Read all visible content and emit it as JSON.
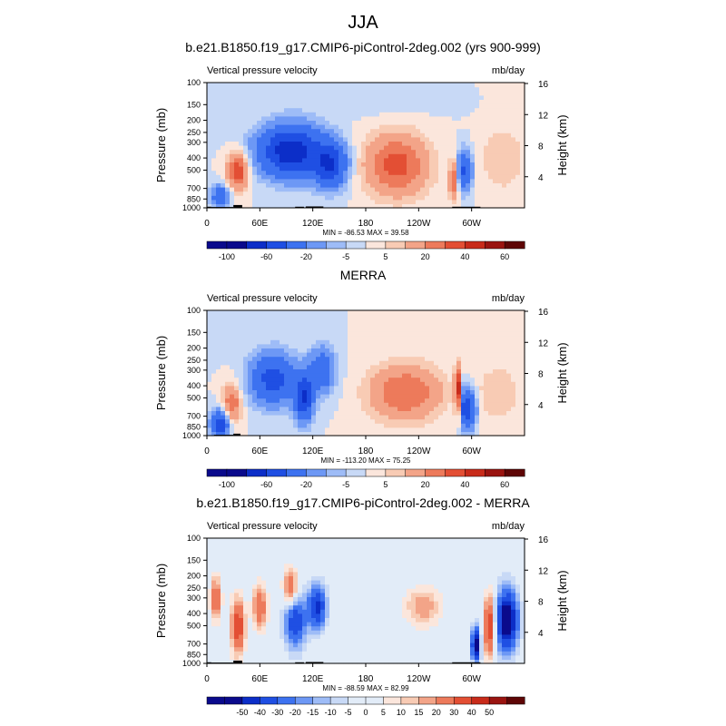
{
  "figure": {
    "title": "JJA"
  },
  "colors": {
    "palette": [
      "#0a0a8c",
      "#0c2ec8",
      "#1f4fe3",
      "#3d72f0",
      "#6d98f5",
      "#9ebcf7",
      "#c8d9f6",
      "#e2ecf8",
      "#fbe6dc",
      "#f8cbb4",
      "#f3a488",
      "#ed7a5b",
      "#e34f34",
      "#c82b1a",
      "#9a1410",
      "#5e0606"
    ]
  },
  "chart_data": [
    {
      "type": "heatmap",
      "title": "b.e21.B1850.f19_g17.CMIP6-piControl-2deg.002 (yrs 900-999)",
      "left_label": "Vertical pressure velocity",
      "right_label": "mb/day",
      "ylabel": "Pressure (mb)",
      "y2label": "Height (km)",
      "x_ticks": [
        "0",
        "60E",
        "120E",
        "180",
        "120W",
        "60W"
      ],
      "x_tick_lon": [
        0,
        60,
        120,
        180,
        240,
        300
      ],
      "xlim": [
        0,
        360
      ],
      "y_ticks": [
        "100",
        "150",
        "200",
        "250",
        "300",
        "400",
        "500",
        "700",
        "850",
        "1000"
      ],
      "y_tick_p": [
        100,
        150,
        200,
        250,
        300,
        400,
        500,
        700,
        850,
        1000
      ],
      "ylim": [
        1000,
        100
      ],
      "y2_ticks": [
        "16",
        "12",
        "8",
        "4"
      ],
      "y2_tick_km": [
        16,
        12,
        8,
        4
      ],
      "stats": "MIN = -86.53   MAX =  39.58",
      "colorbar_levels": [
        -100,
        -80,
        -60,
        -40,
        -20,
        -10,
        -5,
        0,
        5,
        10,
        20,
        30,
        40,
        50,
        60
      ],
      "colorbar_labels": [
        "-100",
        "-60",
        "-20",
        "-5",
        "5",
        "20",
        "40",
        "60"
      ],
      "colorbar_label_levels": [
        -100,
        -60,
        -20,
        -5,
        5,
        20,
        40,
        60
      ],
      "min": -86.53,
      "max": 39.58,
      "features": [
        {
          "lon": 35,
          "p": 500,
          "wlon": 12,
          "wz": 0.32,
          "amp": 40
        },
        {
          "lon": 15,
          "p": 800,
          "wlon": 10,
          "wz": 0.2,
          "amp": -35
        },
        {
          "lon": 95,
          "p": 350,
          "wlon": 35,
          "wz": 0.45,
          "amp": -75
        },
        {
          "lon": 140,
          "p": 450,
          "wlon": 18,
          "wz": 0.4,
          "amp": -55
        },
        {
          "lon": 215,
          "p": 450,
          "wlon": 35,
          "wz": 0.55,
          "amp": 35
        },
        {
          "lon": 280,
          "p": 600,
          "wlon": 5,
          "wz": 0.35,
          "amp": 30
        },
        {
          "lon": 292,
          "p": 500,
          "wlon": 8,
          "wz": 0.35,
          "amp": -45
        },
        {
          "lon": 335,
          "p": 400,
          "wlon": 25,
          "wz": 0.6,
          "amp": 10
        },
        {
          "lon": 180,
          "p": 150,
          "wlon": 80,
          "wz": 0.2,
          "amp": -3
        }
      ],
      "topography": [
        [
          0,
          5,
          980
        ],
        [
          5,
          30,
          985
        ],
        [
          30,
          40,
          950
        ],
        [
          100,
          110,
          980
        ],
        [
          112,
          132,
          975
        ],
        [
          278,
          310,
          980
        ]
      ]
    },
    {
      "type": "heatmap",
      "title": "MERRA",
      "left_label": "Vertical pressure velocity",
      "right_label": "mb/day",
      "ylabel": "Pressure (mb)",
      "y2label": "Height (km)",
      "x_ticks": [
        "0",
        "60E",
        "120E",
        "180",
        "120W",
        "60W"
      ],
      "x_tick_lon": [
        0,
        60,
        120,
        180,
        240,
        300
      ],
      "xlim": [
        0,
        360
      ],
      "y_ticks": [
        "100",
        "150",
        "200",
        "250",
        "300",
        "400",
        "500",
        "700",
        "850",
        "1000"
      ],
      "y_tick_p": [
        100,
        150,
        200,
        250,
        300,
        400,
        500,
        700,
        850,
        1000
      ],
      "ylim": [
        1000,
        100
      ],
      "y2_ticks": [
        "16",
        "12",
        "8",
        "4"
      ],
      "y2_tick_km": [
        16,
        12,
        8,
        4
      ],
      "stats": "MIN = -113.20   MAX =  75.25",
      "colorbar_levels": [
        -100,
        -80,
        -60,
        -40,
        -20,
        -10,
        -5,
        0,
        5,
        10,
        20,
        30,
        40,
        50,
        60
      ],
      "colorbar_labels": [
        "-100",
        "-60",
        "-20",
        "-5",
        "5",
        "20",
        "40",
        "60"
      ],
      "colorbar_label_levels": [
        -100,
        -60,
        -20,
        -5,
        5,
        20,
        40,
        60
      ],
      "min": -113.2,
      "max": 75.25,
      "features": [
        {
          "lon": 28,
          "p": 550,
          "wlon": 10,
          "wz": 0.35,
          "amp": 30
        },
        {
          "lon": 15,
          "p": 800,
          "wlon": 10,
          "wz": 0.25,
          "amp": -55
        },
        {
          "lon": 75,
          "p": 350,
          "wlon": 25,
          "wz": 0.45,
          "amp": -50
        },
        {
          "lon": 110,
          "p": 500,
          "wlon": 10,
          "wz": 0.4,
          "amp": -60
        },
        {
          "lon": 130,
          "p": 300,
          "wlon": 15,
          "wz": 0.4,
          "amp": -35
        },
        {
          "lon": 225,
          "p": 450,
          "wlon": 40,
          "wz": 0.5,
          "amp": 30
        },
        {
          "lon": 284,
          "p": 450,
          "wlon": 3,
          "wz": 0.45,
          "amp": 60
        },
        {
          "lon": 295,
          "p": 600,
          "wlon": 9,
          "wz": 0.35,
          "amp": -60
        },
        {
          "lon": 330,
          "p": 450,
          "wlon": 25,
          "wz": 0.5,
          "amp": 10
        }
      ],
      "topography": [
        [
          8,
          30,
          985
        ],
        [
          30,
          38,
          965
        ]
      ]
    },
    {
      "type": "heatmap",
      "title": "b.e21.B1850.f19_g17.CMIP6-piControl-2deg.002 - MERRA",
      "left_label": "Vertical pressure velocity",
      "right_label": "mb/day",
      "ylabel": "Pressure (mb)",
      "y2label": "Height (km)",
      "x_ticks": [
        "0",
        "60E",
        "120E",
        "180",
        "120W",
        "60W"
      ],
      "x_tick_lon": [
        0,
        60,
        120,
        180,
        240,
        300
      ],
      "xlim": [
        0,
        360
      ],
      "y_ticks": [
        "100",
        "150",
        "200",
        "250",
        "300",
        "400",
        "500",
        "700",
        "850",
        "1000"
      ],
      "y_tick_p": [
        100,
        150,
        200,
        250,
        300,
        400,
        500,
        700,
        850,
        1000
      ],
      "ylim": [
        1000,
        100
      ],
      "y2_ticks": [
        "16",
        "12",
        "8",
        "4"
      ],
      "y2_tick_km": [
        16,
        12,
        8,
        4
      ],
      "stats": "MIN = -88.59   MAX =  82.99",
      "colorbar_levels": [
        -60,
        -50,
        -40,
        -30,
        -20,
        -15,
        -10,
        -5,
        0,
        5,
        10,
        15,
        20,
        30,
        40,
        50,
        60
      ],
      "colorbar_labels": [
        "-50",
        "-40",
        "-30",
        "-20",
        "-15",
        "-10",
        "-5",
        "0",
        "5",
        "10",
        "15",
        "20",
        "30",
        "40",
        "50"
      ],
      "colorbar_label_levels": [
        -50,
        -40,
        -30,
        -20,
        -15,
        -10,
        -5,
        0,
        5,
        10,
        15,
        20,
        30,
        40,
        50
      ],
      "min": -88.59,
      "max": 82.99,
      "features": [
        {
          "lon": 10,
          "p": 300,
          "wlon": 6,
          "wz": 0.4,
          "amp": 30
        },
        {
          "lon": 35,
          "p": 500,
          "wlon": 8,
          "wz": 0.5,
          "amp": 40
        },
        {
          "lon": 60,
          "p": 350,
          "wlon": 8,
          "wz": 0.4,
          "amp": 30
        },
        {
          "lon": 95,
          "p": 250,
          "wlon": 8,
          "wz": 0.35,
          "amp": 35
        },
        {
          "lon": 100,
          "p": 450,
          "wlon": 12,
          "wz": 0.5,
          "amp": -40
        },
        {
          "lon": 125,
          "p": 350,
          "wlon": 10,
          "wz": 0.4,
          "amp": -45
        },
        {
          "lon": 245,
          "p": 350,
          "wlon": 20,
          "wz": 0.35,
          "amp": 20
        },
        {
          "lon": 305,
          "p": 700,
          "wlon": 5,
          "wz": 0.3,
          "amp": -60
        },
        {
          "lon": 320,
          "p": 500,
          "wlon": 6,
          "wz": 0.55,
          "amp": 45
        },
        {
          "lon": 340,
          "p": 450,
          "wlon": 12,
          "wz": 0.55,
          "amp": -65
        }
      ],
      "topography": [
        [
          0,
          5,
          980
        ],
        [
          5,
          30,
          985
        ],
        [
          30,
          40,
          950
        ],
        [
          100,
          110,
          980
        ],
        [
          112,
          132,
          975
        ],
        [
          278,
          310,
          980
        ]
      ]
    }
  ]
}
